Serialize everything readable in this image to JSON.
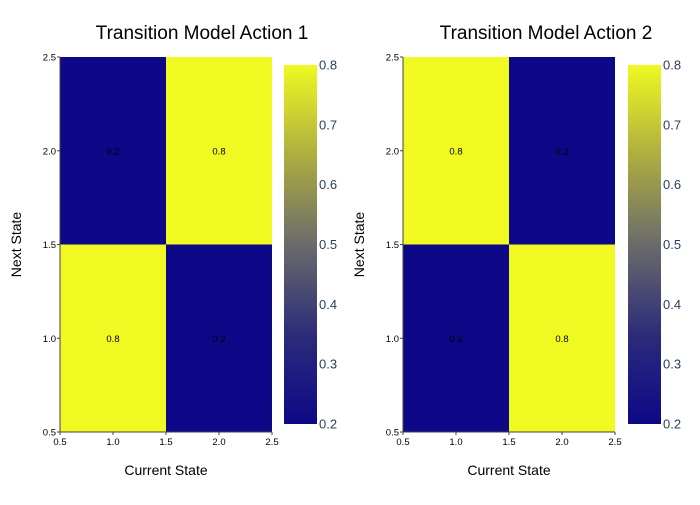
{
  "chart_data": [
    {
      "type": "heatmap",
      "title": "Transition Model Action 1",
      "xlabel": "Current State",
      "ylabel": "Next State",
      "x": [
        1,
        2
      ],
      "y": [
        1,
        2
      ],
      "z": [
        [
          0.8,
          0.2
        ],
        [
          0.2,
          0.8
        ]
      ],
      "text": [
        [
          "0.8",
          "0.2"
        ],
        [
          "0.2",
          "0.8"
        ]
      ],
      "xlim": [
        0.5,
        2.5
      ],
      "ylim": [
        0.5,
        2.5
      ],
      "xticks": [
        "0.5",
        "1.0",
        "1.5",
        "2.0",
        "2.5"
      ],
      "yticks": [
        "0.5",
        "1.0",
        "1.5",
        "2.0",
        "2.5"
      ],
      "colorscale": [
        "#0d0887",
        "#f0f921"
      ],
      "zlim": [
        0.2,
        0.8
      ],
      "colorbar_ticks": [
        "0.2",
        "0.3",
        "0.4",
        "0.5",
        "0.6",
        "0.7",
        "0.8"
      ]
    },
    {
      "type": "heatmap",
      "title": "Transition Model Action 2",
      "xlabel": "Current State",
      "ylabel": "Next State",
      "x": [
        1,
        2
      ],
      "y": [
        1,
        2
      ],
      "z": [
        [
          0.2,
          0.8
        ],
        [
          0.8,
          0.2
        ]
      ],
      "text": [
        [
          "0.2",
          "0.8"
        ],
        [
          "0.8",
          "0.2"
        ]
      ],
      "xlim": [
        0.5,
        2.5
      ],
      "ylim": [
        0.5,
        2.5
      ],
      "xticks": [
        "0.5",
        "1.0",
        "1.5",
        "2.0",
        "2.5"
      ],
      "yticks": [
        "0.5",
        "1.0",
        "1.5",
        "2.0",
        "2.5"
      ],
      "colorscale": [
        "#0d0887",
        "#f0f921"
      ],
      "zlim": [
        0.2,
        0.8
      ],
      "colorbar_ticks": [
        "0.2",
        "0.3",
        "0.4",
        "0.5",
        "0.6",
        "0.7",
        "0.8"
      ]
    }
  ]
}
